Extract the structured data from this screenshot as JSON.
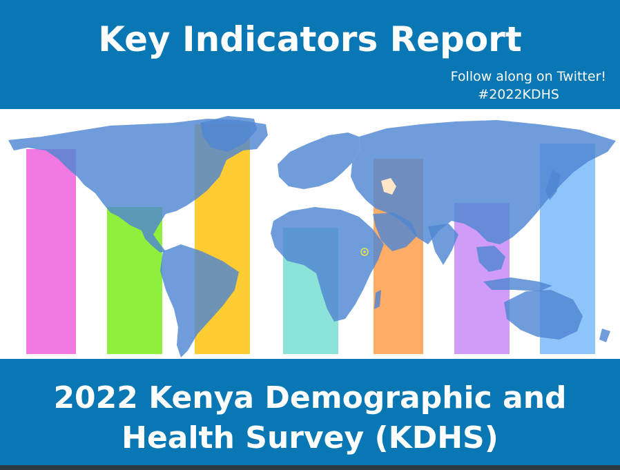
{
  "header": {
    "title": "Key Indicators Report",
    "follow_text": "Follow along on Twitter!",
    "hashtag": "#2022KDHS"
  },
  "footer": {
    "line1": "2022 Kenya Demographic and",
    "line2": "Health Survey (KDHS)"
  },
  "colors": {
    "banner": "#0877b4",
    "map": "#5b8fd6",
    "bars": [
      "#f07ae0",
      "#8ef03c",
      "#ffcc33",
      "#8ee3d8",
      "#ffad66",
      "#d09cf7",
      "#8fc4fb"
    ]
  },
  "icons": {
    "kenya_marker": "kenya-marker-icon"
  }
}
